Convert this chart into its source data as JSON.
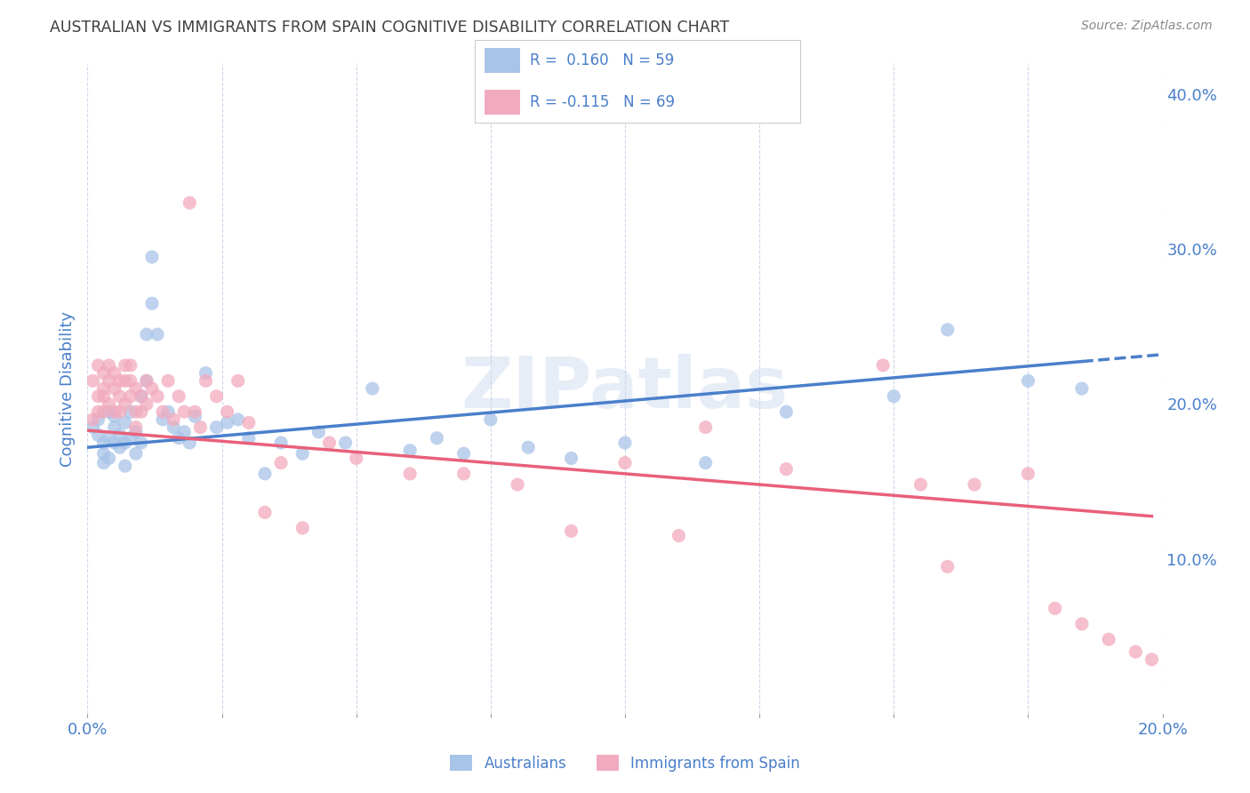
{
  "title": "AUSTRALIAN VS IMMIGRANTS FROM SPAIN COGNITIVE DISABILITY CORRELATION CHART",
  "source": "Source: ZipAtlas.com",
  "ylabel": "Cognitive Disability",
  "xlim": [
    0.0,
    0.2
  ],
  "ylim": [
    0.0,
    0.42
  ],
  "xtick_positions": [
    0.0,
    0.025,
    0.05,
    0.075,
    0.1,
    0.125,
    0.15,
    0.175,
    0.2
  ],
  "xtick_labels": [
    "0.0%",
    "",
    "",
    "",
    "",
    "",
    "",
    "",
    "20.0%"
  ],
  "yticks": [
    0.1,
    0.2,
    0.3,
    0.4
  ],
  "blue_color": "#a8c4e8",
  "pink_color": "#f2aabe",
  "blue_line_color": "#4a7fcb",
  "pink_line_color": "#e8607a",
  "R_blue": 0.16,
  "N_blue": 59,
  "R_pink": -0.115,
  "N_pink": 69,
  "background_color": "#ffffff",
  "grid_color": "#c8d4e8",
  "title_color": "#404040",
  "axis_label_color": "#4a7fcb",
  "watermark": "ZIPatlas",
  "legend_label_blue": "Australians",
  "legend_label_pink": "Immigrants from Spain",
  "blue_intercept": 0.172,
  "blue_slope": 0.3,
  "pink_intercept": 0.183,
  "pink_slope": -0.28,
  "australians_x": [
    0.001,
    0.002,
    0.002,
    0.003,
    0.003,
    0.003,
    0.004,
    0.004,
    0.004,
    0.005,
    0.005,
    0.005,
    0.006,
    0.006,
    0.007,
    0.007,
    0.007,
    0.008,
    0.008,
    0.009,
    0.009,
    0.01,
    0.01,
    0.011,
    0.011,
    0.012,
    0.012,
    0.013,
    0.014,
    0.015,
    0.016,
    0.017,
    0.018,
    0.019,
    0.02,
    0.022,
    0.024,
    0.026,
    0.028,
    0.03,
    0.033,
    0.036,
    0.04,
    0.043,
    0.048,
    0.053,
    0.06,
    0.065,
    0.07,
    0.075,
    0.082,
    0.09,
    0.1,
    0.115,
    0.13,
    0.15,
    0.16,
    0.175,
    0.185
  ],
  "australians_y": [
    0.185,
    0.19,
    0.18,
    0.175,
    0.168,
    0.162,
    0.195,
    0.178,
    0.165,
    0.192,
    0.175,
    0.185,
    0.18,
    0.172,
    0.188,
    0.175,
    0.16,
    0.195,
    0.178,
    0.182,
    0.168,
    0.205,
    0.175,
    0.215,
    0.245,
    0.295,
    0.265,
    0.245,
    0.19,
    0.195,
    0.185,
    0.178,
    0.182,
    0.175,
    0.192,
    0.22,
    0.185,
    0.188,
    0.19,
    0.178,
    0.155,
    0.175,
    0.168,
    0.182,
    0.175,
    0.21,
    0.17,
    0.178,
    0.168,
    0.19,
    0.172,
    0.165,
    0.175,
    0.162,
    0.195,
    0.205,
    0.248,
    0.215,
    0.21
  ],
  "spain_x": [
    0.001,
    0.001,
    0.002,
    0.002,
    0.002,
    0.003,
    0.003,
    0.003,
    0.003,
    0.004,
    0.004,
    0.004,
    0.005,
    0.005,
    0.005,
    0.006,
    0.006,
    0.006,
    0.007,
    0.007,
    0.007,
    0.008,
    0.008,
    0.008,
    0.009,
    0.009,
    0.009,
    0.01,
    0.01,
    0.011,
    0.011,
    0.012,
    0.013,
    0.014,
    0.015,
    0.016,
    0.017,
    0.018,
    0.019,
    0.02,
    0.021,
    0.022,
    0.024,
    0.026,
    0.028,
    0.03,
    0.033,
    0.036,
    0.04,
    0.045,
    0.05,
    0.06,
    0.07,
    0.08,
    0.09,
    0.1,
    0.11,
    0.115,
    0.13,
    0.148,
    0.155,
    0.16,
    0.165,
    0.175,
    0.18,
    0.185,
    0.19,
    0.195,
    0.198
  ],
  "spain_y": [
    0.19,
    0.215,
    0.205,
    0.225,
    0.195,
    0.21,
    0.22,
    0.205,
    0.195,
    0.225,
    0.215,
    0.2,
    0.21,
    0.22,
    0.195,
    0.215,
    0.205,
    0.195,
    0.215,
    0.225,
    0.2,
    0.205,
    0.215,
    0.225,
    0.21,
    0.195,
    0.185,
    0.205,
    0.195,
    0.215,
    0.2,
    0.21,
    0.205,
    0.195,
    0.215,
    0.19,
    0.205,
    0.195,
    0.33,
    0.195,
    0.185,
    0.215,
    0.205,
    0.195,
    0.215,
    0.188,
    0.13,
    0.162,
    0.12,
    0.175,
    0.165,
    0.155,
    0.155,
    0.148,
    0.118,
    0.162,
    0.115,
    0.185,
    0.158,
    0.225,
    0.148,
    0.095,
    0.148,
    0.155,
    0.068,
    0.058,
    0.048,
    0.04,
    0.035
  ]
}
